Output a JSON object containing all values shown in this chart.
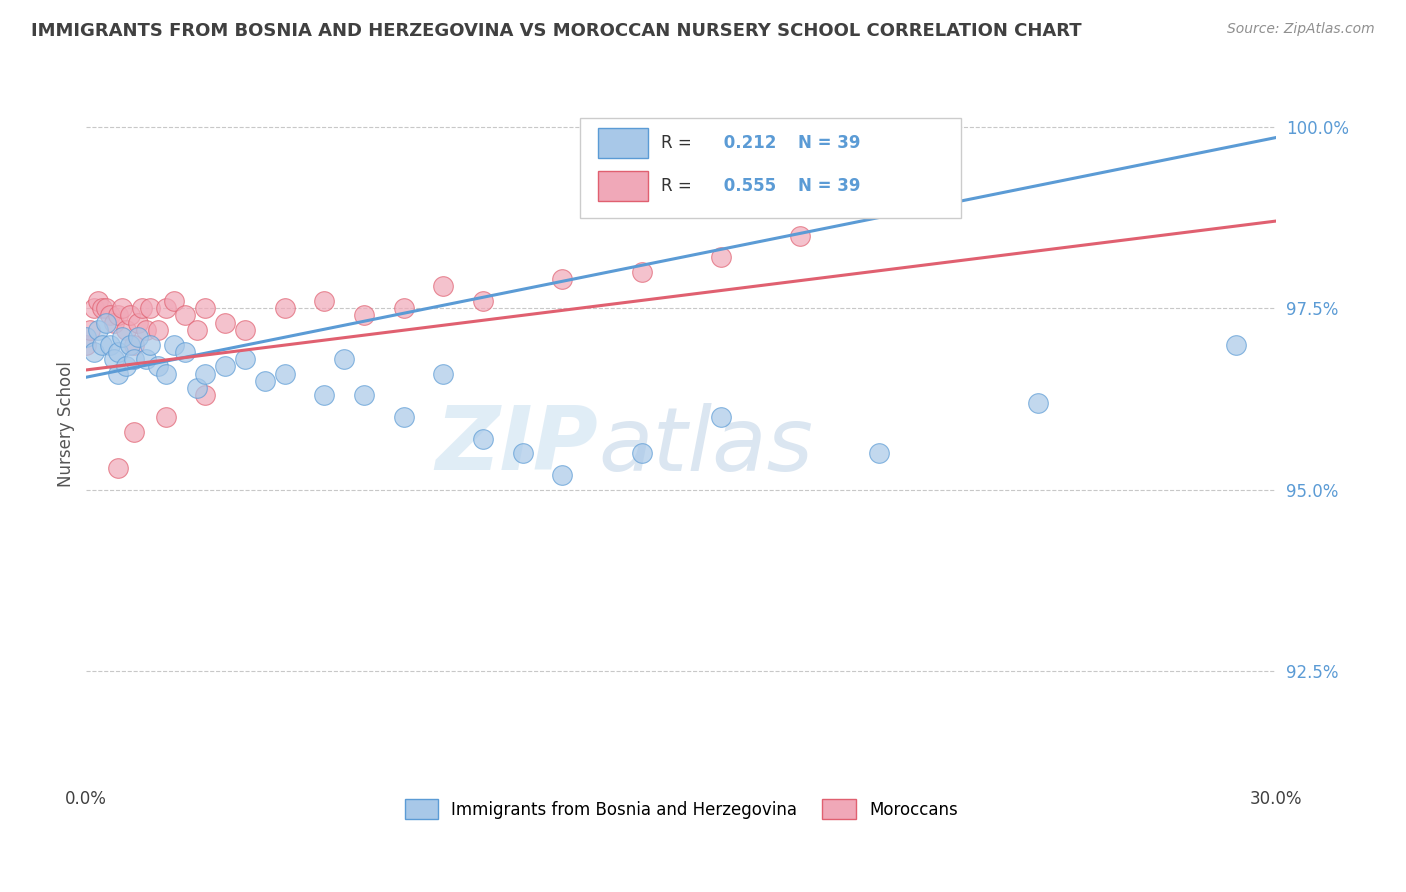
{
  "title": "IMMIGRANTS FROM BOSNIA AND HERZEGOVINA VS MOROCCAN NURSERY SCHOOL CORRELATION CHART",
  "source": "Source: ZipAtlas.com",
  "ylabel": "Nursery School",
  "xlim": [
    0.0,
    0.3
  ],
  "ylim": [
    0.91,
    1.008
  ],
  "xtick_labels": [
    "0.0%",
    "30.0%"
  ],
  "ytick_labels": [
    "92.5%",
    "95.0%",
    "97.5%",
    "100.0%"
  ],
  "ytick_values": [
    0.925,
    0.95,
    0.975,
    1.0
  ],
  "xtick_values": [
    0.0,
    0.3
  ],
  "legend_label1": "Immigrants from Bosnia and Herzegovina",
  "legend_label2": "Moroccans",
  "r1": 0.212,
  "r2": 0.555,
  "n1": 39,
  "n2": 39,
  "color_blue": "#a8c8e8",
  "color_pink": "#f0a8b8",
  "line_blue": "#5b9bd5",
  "line_pink": "#e06070",
  "watermark_zip": "ZIP",
  "watermark_atlas": "atlas",
  "background_color": "#ffffff",
  "title_color": "#404040",
  "source_color": "#909090",
  "grid_color": "#c8c8c8",
  "ytick_color": "#5b9bd5",
  "blue_scatter_x": [
    0.0,
    0.002,
    0.003,
    0.004,
    0.005,
    0.006,
    0.007,
    0.008,
    0.008,
    0.009,
    0.01,
    0.011,
    0.012,
    0.013,
    0.015,
    0.016,
    0.018,
    0.02,
    0.022,
    0.025,
    0.028,
    0.03,
    0.035,
    0.04,
    0.045,
    0.05,
    0.06,
    0.065,
    0.07,
    0.08,
    0.09,
    0.1,
    0.11,
    0.12,
    0.14,
    0.16,
    0.2,
    0.24,
    0.29
  ],
  "blue_scatter_y": [
    0.971,
    0.969,
    0.972,
    0.97,
    0.973,
    0.97,
    0.968,
    0.969,
    0.966,
    0.971,
    0.967,
    0.97,
    0.968,
    0.971,
    0.968,
    0.97,
    0.967,
    0.966,
    0.97,
    0.969,
    0.964,
    0.966,
    0.967,
    0.968,
    0.965,
    0.966,
    0.963,
    0.968,
    0.963,
    0.96,
    0.966,
    0.957,
    0.955,
    0.952,
    0.955,
    0.96,
    0.955,
    0.962,
    0.97
  ],
  "pink_scatter_x": [
    0.0,
    0.001,
    0.002,
    0.003,
    0.004,
    0.005,
    0.006,
    0.007,
    0.008,
    0.009,
    0.01,
    0.011,
    0.012,
    0.013,
    0.014,
    0.015,
    0.016,
    0.018,
    0.02,
    0.022,
    0.025,
    0.028,
    0.03,
    0.035,
    0.04,
    0.05,
    0.06,
    0.07,
    0.08,
    0.09,
    0.1,
    0.12,
    0.14,
    0.16,
    0.18,
    0.02,
    0.012,
    0.008,
    0.03
  ],
  "pink_scatter_y": [
    0.97,
    0.972,
    0.975,
    0.976,
    0.975,
    0.975,
    0.974,
    0.973,
    0.974,
    0.975,
    0.972,
    0.974,
    0.97,
    0.973,
    0.975,
    0.972,
    0.975,
    0.972,
    0.975,
    0.976,
    0.974,
    0.972,
    0.975,
    0.973,
    0.972,
    0.975,
    0.976,
    0.974,
    0.975,
    0.978,
    0.976,
    0.979,
    0.98,
    0.982,
    0.985,
    0.96,
    0.958,
    0.953,
    0.963
  ],
  "blue_line_x0": 0.0,
  "blue_line_y0": 0.9655,
  "blue_line_x1": 0.3,
  "blue_line_y1": 0.9985,
  "pink_line_x0": 0.0,
  "pink_line_y0": 0.9665,
  "pink_line_x1": 0.3,
  "pink_line_y1": 0.987
}
